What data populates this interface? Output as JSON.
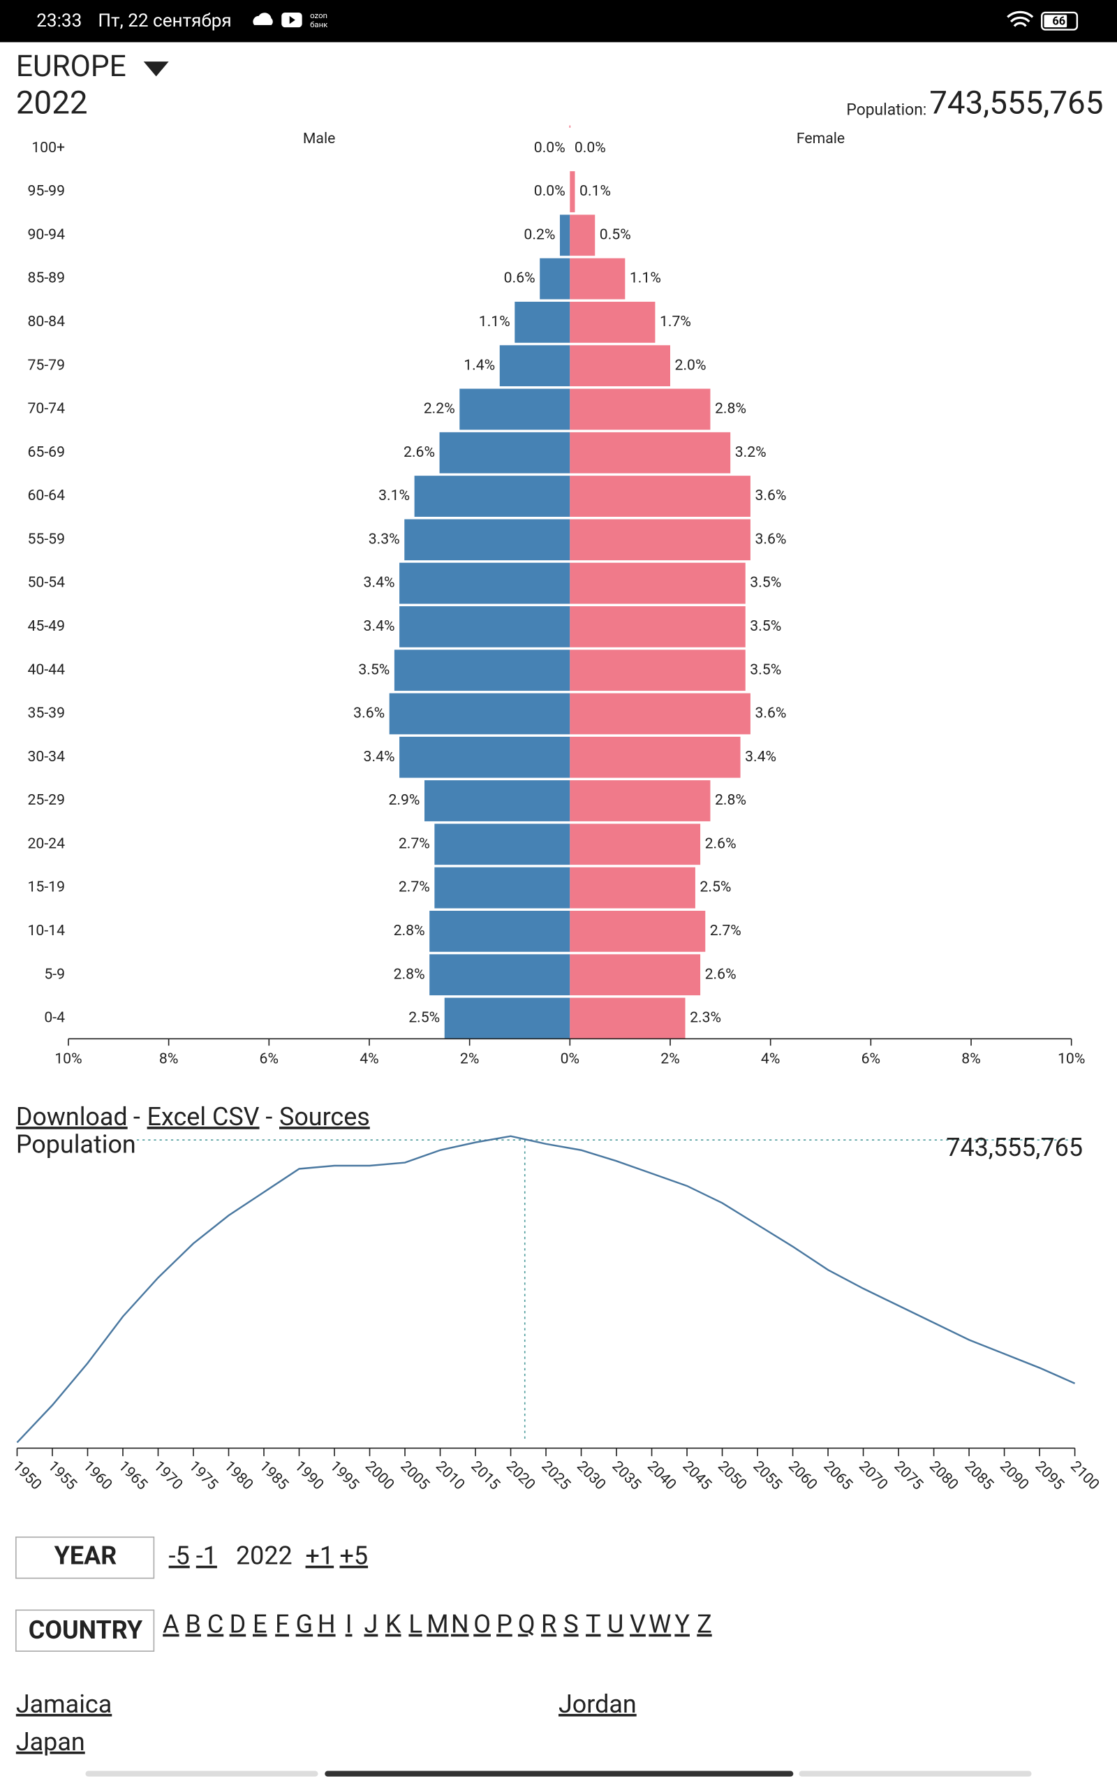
{
  "status_bar": {
    "time": "23:33",
    "date": "Пт, 22 сентября",
    "app_top": "ozon",
    "app_bottom": "банк",
    "battery": "66"
  },
  "header": {
    "region": "EUROPE",
    "year": "2022",
    "population_label": "Population:",
    "population": "743,555,765"
  },
  "chart_data": [
    {
      "type": "pyramid",
      "categories": [
        "100+",
        "95-99",
        "90-94",
        "85-89",
        "80-84",
        "75-79",
        "70-74",
        "65-69",
        "60-64",
        "55-59",
        "50-54",
        "45-49",
        "40-44",
        "35-39",
        "30-34",
        "25-29",
        "20-24",
        "15-19",
        "10-14",
        "5-9",
        "0-4"
      ],
      "series": [
        {
          "name": "Male",
          "color": "#4682b4",
          "values": [
            0.0,
            0.0,
            0.2,
            0.6,
            1.1,
            1.4,
            2.2,
            2.6,
            3.1,
            3.3,
            3.4,
            3.4,
            3.5,
            3.6,
            3.4,
            2.9,
            2.7,
            2.7,
            2.8,
            2.8,
            2.5
          ],
          "value_labels": [
            "0.0%",
            "0.0%",
            "0.2%",
            "0.6%",
            "1.1%",
            "1.4%",
            "2.2%",
            "2.6%",
            "3.1%",
            "3.3%",
            "3.4%",
            "3.4%",
            "3.5%",
            "3.6%",
            "3.4%",
            "2.9%",
            "2.7%",
            "2.7%",
            "2.8%",
            "2.8%",
            "2.5%"
          ]
        },
        {
          "name": "Female",
          "color": "#f07a8a",
          "values": [
            0.0,
            0.1,
            0.5,
            1.1,
            1.7,
            2.0,
            2.8,
            3.2,
            3.6,
            3.6,
            3.5,
            3.5,
            3.5,
            3.6,
            3.4,
            2.8,
            2.6,
            2.5,
            2.7,
            2.6,
            2.3
          ],
          "value_labels": [
            "0.0%",
            "0.1%",
            "0.5%",
            "1.1%",
            "1.7%",
            "2.0%",
            "2.8%",
            "3.2%",
            "3.6%",
            "3.6%",
            "3.5%",
            "3.5%",
            "3.5%",
            "3.6%",
            "3.4%",
            "2.8%",
            "2.6%",
            "2.5%",
            "2.7%",
            "2.6%",
            "2.3%"
          ]
        }
      ],
      "xlim": [
        -10,
        10
      ],
      "xticks": [
        {
          "value": -10,
          "label": "10%"
        },
        {
          "value": -8,
          "label": "8%"
        },
        {
          "value": -6,
          "label": "6%"
        },
        {
          "value": -4,
          "label": "4%"
        },
        {
          "value": -2,
          "label": "2%"
        },
        {
          "value": 0,
          "label": "0%"
        },
        {
          "value": 2,
          "label": "2%"
        },
        {
          "value": 4,
          "label": "4%"
        },
        {
          "value": 6,
          "label": "6%"
        },
        {
          "value": 8,
          "label": "8%"
        },
        {
          "value": 10,
          "label": "10%"
        }
      ]
    },
    {
      "type": "line",
      "title": "Population",
      "x": [
        1950,
        1955,
        1960,
        1965,
        1970,
        1975,
        1980,
        1985,
        1990,
        1995,
        2000,
        2005,
        2010,
        2015,
        2020,
        2025,
        2030,
        2035,
        2040,
        2045,
        2050,
        2055,
        2060,
        2065,
        2070,
        2075,
        2080,
        2085,
        2090,
        2095,
        2100
      ],
      "series": [
        {
          "color": "#4a78a0",
          "values": [
            549000000,
            573000000,
            600000000,
            630000000,
            655000000,
            677000000,
            695000000,
            710000000,
            725000000,
            727000000,
            727000000,
            729000000,
            737000000,
            742000000,
            746000000,
            741000000,
            737000000,
            730000000,
            722000000,
            714000000,
            703000000,
            689000000,
            675000000,
            660000000,
            648000000,
            637000000,
            626000000,
            615000000,
            606000000,
            597000000,
            587000000
          ]
        }
      ],
      "xlim": [
        1950,
        2100
      ],
      "xticks": [
        1950,
        1955,
        1960,
        1965,
        1970,
        1975,
        1980,
        1985,
        1990,
        1995,
        2000,
        2005,
        2010,
        2015,
        2020,
        2025,
        2030,
        2035,
        2040,
        2045,
        2050,
        2055,
        2060,
        2065,
        2070,
        2075,
        2080,
        2085,
        2090,
        2095,
        2100
      ],
      "ylim": [
        549000000,
        747000000
      ],
      "marker": {
        "x": 2022,
        "value": 743555765,
        "label": "743,555,765"
      }
    }
  ],
  "links": {
    "download": "Download",
    "separator": "-",
    "csv": "Excel CSV",
    "sources": "Sources"
  },
  "year_control": {
    "button": "YEAR",
    "steps": [
      "-5",
      "-1"
    ],
    "current": "2022",
    "forward": [
      "+1",
      "+5"
    ]
  },
  "country_control": {
    "button": "COUNTRY",
    "letters": [
      "A",
      "B",
      "C",
      "D",
      "E",
      "F",
      "G",
      "H",
      "I",
      "J",
      "K",
      "L",
      "M",
      "N",
      "O",
      "P",
      "Q",
      "R",
      "S",
      "T",
      "U",
      "V",
      "W",
      "Y",
      "Z"
    ]
  },
  "countries": [
    "Jamaica",
    "Jordan",
    "Japan"
  ]
}
